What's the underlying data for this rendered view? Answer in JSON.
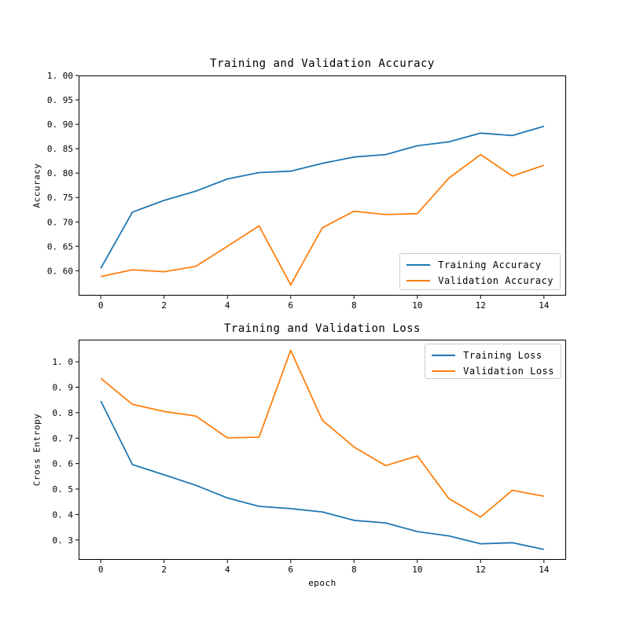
{
  "window": {
    "background": "#ffffff"
  },
  "colors": {
    "axis": "#000000",
    "text": "#000000",
    "legend_border": "#cccccc",
    "legend_background": "#ffffff",
    "series_blue": "#1f77b4",
    "series_orange": "#ff7f0e"
  },
  "chart_data": [
    {
      "type": "line",
      "title": "Training and Validation Accuracy",
      "xlabel": "",
      "ylabel": "Accuracy",
      "x": [
        0,
        1,
        2,
        3,
        4,
        5,
        6,
        7,
        8,
        9,
        10,
        11,
        12,
        13,
        14
      ],
      "series": [
        {
          "name": "Training Accuracy",
          "color": "#1f77b4",
          "values": [
            0.605,
            0.72,
            0.744,
            0.763,
            0.788,
            0.801,
            0.804,
            0.82,
            0.833,
            0.838,
            0.856,
            0.864,
            0.882,
            0.877,
            0.896
          ]
        },
        {
          "name": "Validation Accuracy",
          "color": "#ff7f0e",
          "values": [
            0.588,
            0.602,
            0.598,
            0.609,
            0.65,
            0.692,
            0.571,
            0.688,
            0.722,
            0.715,
            0.717,
            0.79,
            0.838,
            0.794,
            0.816
          ]
        }
      ],
      "xlim": [
        -0.7,
        14.7
      ],
      "ylim": [
        0.549,
        1.0
      ],
      "xticks": {
        "values": [
          0,
          2,
          4,
          6,
          8,
          10,
          12,
          14
        ],
        "labels": [
          "0",
          "2",
          "4",
          "6",
          "8",
          "10",
          "12",
          "14"
        ]
      },
      "yticks": {
        "values": [
          0.6,
          0.65,
          0.7,
          0.75,
          0.8,
          0.85,
          0.9,
          0.95,
          1.0
        ],
        "labels": [
          "0. 60",
          "0. 65",
          "0. 70",
          "0. 75",
          "0. 80",
          "0. 85",
          "0. 90",
          "0. 95",
          "1. 00"
        ]
      },
      "grid": false,
      "legend": {
        "loc": "lower right",
        "items": [
          "Training Accuracy",
          "Validation Accuracy"
        ]
      }
    },
    {
      "type": "line",
      "title": "Training and Validation Loss",
      "xlabel": "epoch",
      "ylabel": "Cross Entropy",
      "x": [
        0,
        1,
        2,
        3,
        4,
        5,
        6,
        7,
        8,
        9,
        10,
        11,
        12,
        13,
        14
      ],
      "series": [
        {
          "name": "Training Loss",
          "color": "#1f77b4",
          "values": [
            0.846,
            0.596,
            0.556,
            0.515,
            0.465,
            0.432,
            0.423,
            0.41,
            0.377,
            0.367,
            0.333,
            0.316,
            0.285,
            0.289,
            0.263
          ]
        },
        {
          "name": "Validation Loss",
          "color": "#ff7f0e",
          "values": [
            0.935,
            0.833,
            0.805,
            0.787,
            0.701,
            0.704,
            1.045,
            0.77,
            0.665,
            0.592,
            0.63,
            0.462,
            0.39,
            0.495,
            0.472
          ]
        }
      ],
      "xlim": [
        -0.7,
        14.7
      ],
      "ylim": [
        0.222,
        1.087
      ],
      "xticks": {
        "values": [
          0,
          2,
          4,
          6,
          8,
          10,
          12,
          14
        ],
        "labels": [
          "0",
          "2",
          "4",
          "6",
          "8",
          "10",
          "12",
          "14"
        ]
      },
      "yticks": {
        "values": [
          0.3,
          0.4,
          0.5,
          0.6,
          0.7,
          0.8,
          0.9,
          1.0
        ],
        "labels": [
          "0. 3",
          "0. 4",
          "0. 5",
          "0. 6",
          "0. 7",
          "0. 8",
          "0. 9",
          "1. 0"
        ]
      },
      "grid": false,
      "legend": {
        "loc": "upper right",
        "items": [
          "Training Loss",
          "Validation Loss"
        ]
      }
    }
  ]
}
